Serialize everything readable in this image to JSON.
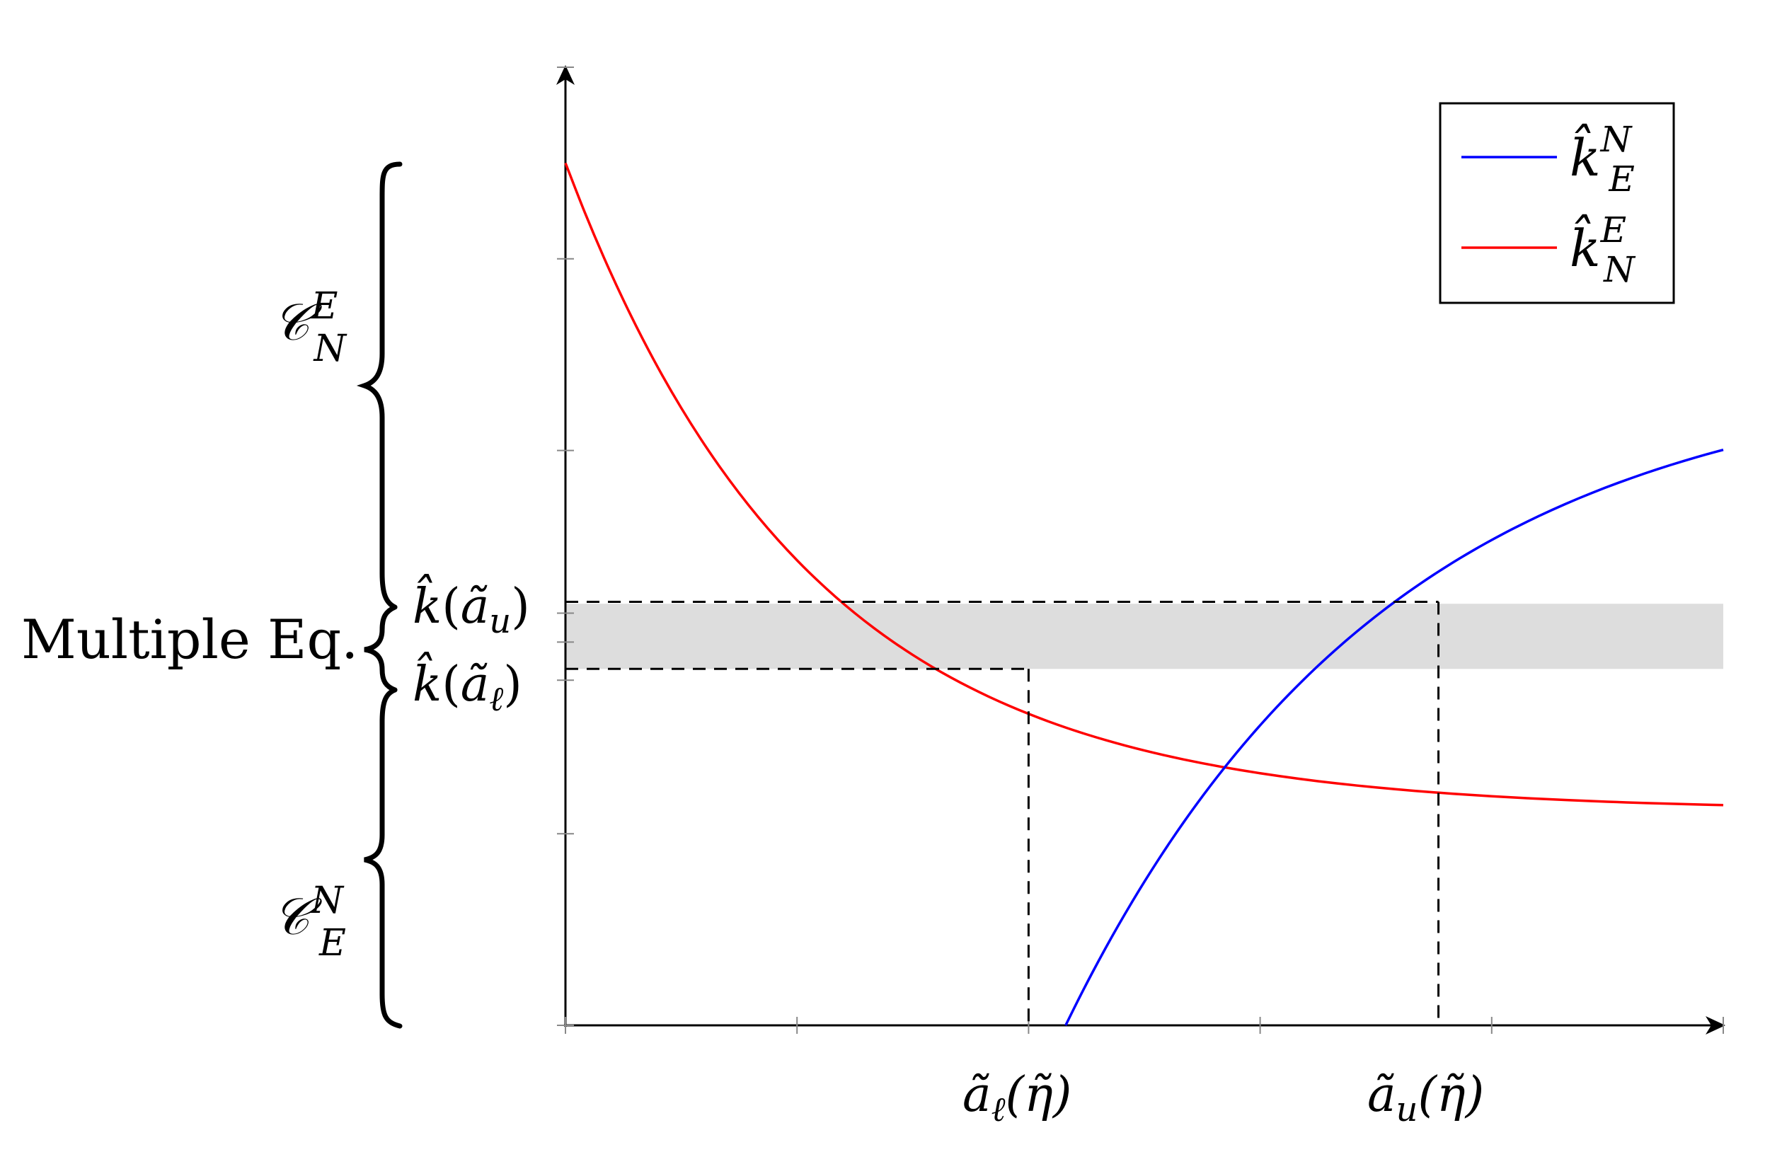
{
  "chart_data": {
    "type": "line",
    "title": "",
    "xlabel": "",
    "ylabel": "",
    "xlim": [
      0,
      5
    ],
    "ylim": [
      0,
      5
    ],
    "grid": false,
    "legend_position": "top-right",
    "series": [
      {
        "name": "k̂_E^N",
        "color": "#0000ff",
        "x": [
          2.16,
          2.5,
          3.0,
          3.5,
          4.0,
          4.5,
          5.0
        ],
        "y": [
          0.0,
          0.9,
          1.88,
          2.44,
          2.8,
          3.06,
          2.83
        ]
      },
      {
        "name": "k̂_N^E",
        "color": "#ff0000",
        "x": [
          0.0,
          0.5,
          1.0,
          1.5,
          2.0,
          2.5,
          3.0,
          3.5,
          4.0,
          4.5,
          5.0
        ],
        "y": [
          4.5,
          3.3,
          2.5,
          1.95,
          1.85,
          1.6,
          1.4,
          1.33,
          1.27,
          1.23,
          1.24
        ]
      }
    ],
    "series_label_parts": [
      {
        "base": "k̂",
        "sub": "E",
        "sup": "N"
      },
      {
        "base": "k̂",
        "sub": "N",
        "sup": "E"
      }
    ],
    "shaded_band": {
      "y_from": 1.86,
      "y_to": 2.2,
      "color": "#dddddd"
    },
    "threshold_lines": {
      "k_u": 2.21,
      "k_l": 1.86,
      "a_l": 2.0,
      "a_u": 3.77
    },
    "x_ticks": [
      0,
      1,
      2,
      3,
      4,
      5
    ],
    "y_ticks": [
      0,
      1,
      2,
      3,
      4,
      5
    ],
    "x_annotations": [
      {
        "value": 2.0,
        "label": "ã_ℓ(η̃)"
      },
      {
        "value": 3.77,
        "label": "ã_u(η̃)"
      }
    ],
    "y_annotations": [
      {
        "value": 2.21,
        "label": "k̂(ã_u)"
      },
      {
        "value": 1.86,
        "label": "k̂(ã_ℓ)"
      }
    ],
    "regions": [
      {
        "label": "C_N^E",
        "sub": "N",
        "sup": "E"
      },
      {
        "label": "Multiple Eq."
      },
      {
        "label": "C_E^N",
        "sub": "E",
        "sup": "N"
      }
    ]
  },
  "labels": {
    "multiple_eq": "Multiple Eq.",
    "region_top": {
      "base": "𝒞",
      "sub": "N",
      "sup": "E"
    },
    "region_bottom": {
      "base": "𝒞",
      "sub": "E",
      "sup": "N"
    },
    "k_u": {
      "base": "k̂",
      "open": "(",
      "a": "ã",
      "sub": "u",
      "close": ")"
    },
    "k_l": {
      "base": "k̂",
      "open": "(",
      "a": "ã",
      "sub": "ℓ",
      "close": ")"
    },
    "a_l": {
      "a": "ã",
      "sub": "ℓ",
      "paren": "(η̃)"
    },
    "a_u": {
      "a": "ã",
      "sub": "u",
      "paren": "(η̃)"
    },
    "legend_1": {
      "base": "k̂",
      "sub": "E",
      "sup": "N"
    },
    "legend_2": {
      "base": "k̂",
      "sub": "N",
      "sup": "E"
    }
  }
}
